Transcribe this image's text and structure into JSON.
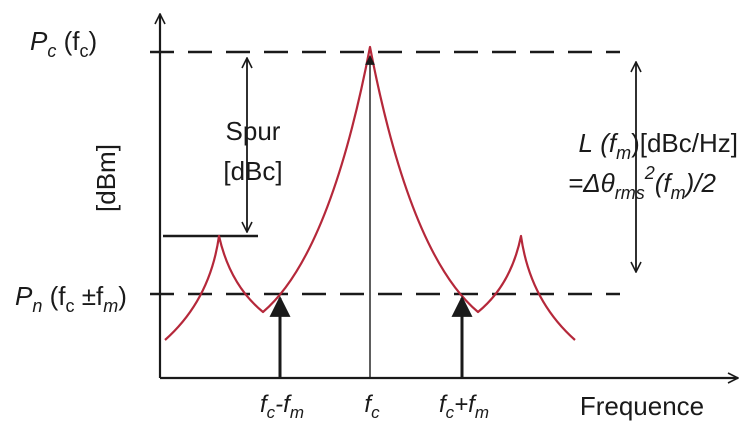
{
  "labels": {
    "pc_main": "P",
    "pc_sub": "c",
    "pc_arg": "(f",
    "pc_arg_sub": "c",
    "pc_close": ")",
    "pn_main": "P",
    "pn_sub": "n",
    "pn_arg": "(f",
    "pn_arg_sub": "c",
    "pn_pm": " ±f",
    "pn_pm_sub": "m",
    "pn_close": ")",
    "y_unit": "[dBm]",
    "spur_line1": "Spur",
    "spur_line2": "[dBc]",
    "l_main": "L",
    "l_arg": "(f",
    "l_arg_sub": "m",
    "l_close": ")[dBc/Hz]",
    "eq_prefix": "=Δθ",
    "eq_sub": "rms",
    "eq_sup": "2",
    "eq_arg": "(f",
    "eq_arg_sub": "m",
    "eq_suffix": ")/2",
    "x_fc_m_f": "f",
    "x_fc_m_fsub": "c",
    "x_fc_m_op": "-f",
    "x_fc_m_opsub": "m",
    "x_fc_f": "f",
    "x_fc_fsub": "c",
    "x_fc_p_f": "f",
    "x_fc_p_fsub": "c",
    "x_fc_p_op": "+f",
    "x_fc_p_opsub": "m",
    "x_axis": "Frequence"
  },
  "colors": {
    "spectrum": "#b5283a",
    "axis": "#1a1a1a",
    "text": "#1a1a1a"
  }
}
